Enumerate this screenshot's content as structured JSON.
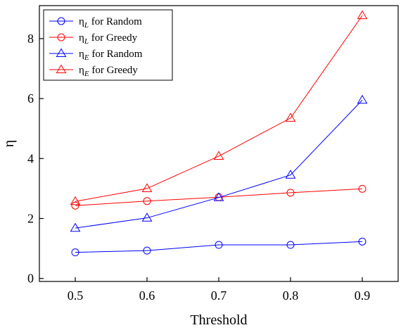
{
  "chart_data": {
    "type": "line",
    "x": [
      0.5,
      0.6,
      0.7,
      0.8,
      0.9
    ],
    "xlabel": "Threshold",
    "ylabel": "η",
    "xlim": [
      0.45,
      0.95
    ],
    "ylim": [
      -0.1,
      9.1
    ],
    "xticks": [
      "0.5",
      "0.6",
      "0.7",
      "0.8",
      "0.9"
    ],
    "yticks": [
      "0",
      "2",
      "4",
      "6",
      "8"
    ],
    "grid": false,
    "legend_position": "top-left",
    "series": [
      {
        "name": "η_L for Random",
        "base": "η",
        "sub": "L",
        "suffix": " for Random",
        "marker": "circle",
        "color": "#0000ff",
        "values": [
          0.87,
          0.93,
          1.12,
          1.12,
          1.23
        ]
      },
      {
        "name": "η_L for Greedy",
        "base": "η",
        "sub": "L",
        "suffix": " for Greedy",
        "marker": "circle",
        "color": "#ff0000",
        "values": [
          2.43,
          2.58,
          2.71,
          2.86,
          2.99
        ]
      },
      {
        "name": "η_E for Random",
        "base": "η",
        "sub": "E",
        "suffix": " for Random",
        "marker": "triangle",
        "color": "#0000ff",
        "values": [
          1.68,
          2.02,
          2.7,
          3.45,
          5.95
        ]
      },
      {
        "name": "η_E for Greedy",
        "base": "η",
        "sub": "E",
        "suffix": " for Greedy",
        "marker": "triangle",
        "color": "#ff0000",
        "values": [
          2.57,
          3.0,
          4.08,
          5.35,
          8.77
        ]
      }
    ]
  }
}
